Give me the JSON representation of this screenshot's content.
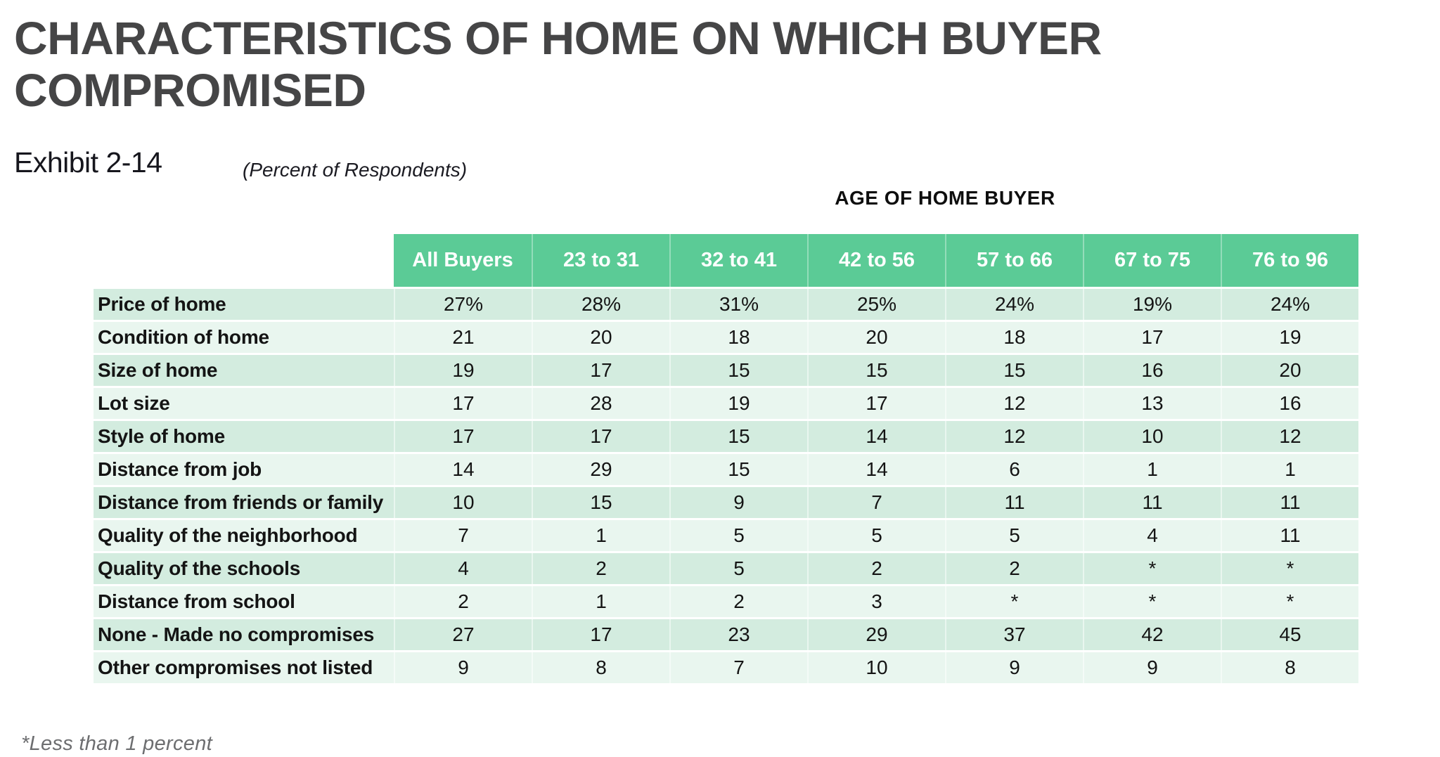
{
  "page": {
    "title": "CHARACTERISTICS OF HOME ON WHICH BUYER COMPROMISED",
    "exhibit_label": "Exhibit 2-14",
    "subtitle": "(Percent of Respondents)",
    "footnote": "*Less than 1 percent"
  },
  "colors": {
    "header_green": "#5BCB96",
    "row_stripe_dark": "#D3ECDF",
    "row_stripe_light": "#E9F6EF",
    "title_gray": "#454546",
    "header_text": "#FFFFFF",
    "body_text": "#141414"
  },
  "chart_data": {
    "type": "table",
    "title": "CHARACTERISTICS OF HOME ON WHICH BUYER COMPROMISED",
    "subtitle": "(Percent of Respondents)",
    "group_header": "AGE OF HOME BUYER",
    "group_header_spans_columns": [
      "23 to 31",
      "32 to 41",
      "42 to 56",
      "57 to 66",
      "67 to 75",
      "76 to 96"
    ],
    "columns": [
      "All Buyers",
      "23 to 31",
      "32 to 41",
      "42 to 56",
      "57 to 66",
      "67 to 75",
      "76 to 96"
    ],
    "rows": [
      {
        "label": "Price of home",
        "values": [
          "27%",
          "28%",
          "31%",
          "25%",
          "24%",
          "19%",
          "24%"
        ]
      },
      {
        "label": "Condition of home",
        "values": [
          "21",
          "20",
          "18",
          "20",
          "18",
          "17",
          "19"
        ]
      },
      {
        "label": "Size of home",
        "values": [
          "19",
          "17",
          "15",
          "15",
          "15",
          "16",
          "20"
        ]
      },
      {
        "label": "Lot size",
        "values": [
          "17",
          "28",
          "19",
          "17",
          "12",
          "13",
          "16"
        ]
      },
      {
        "label": "Style of home",
        "values": [
          "17",
          "17",
          "15",
          "14",
          "12",
          "10",
          "12"
        ]
      },
      {
        "label": "Distance from job",
        "values": [
          "14",
          "29",
          "15",
          "14",
          "6",
          "1",
          "1"
        ]
      },
      {
        "label": "Distance from friends or family",
        "values": [
          "10",
          "15",
          "9",
          "7",
          "11",
          "11",
          "11"
        ]
      },
      {
        "label": "Quality of the neighborhood",
        "values": [
          "7",
          "1",
          "5",
          "5",
          "5",
          "4",
          "11"
        ]
      },
      {
        "label": "Quality of the schools",
        "values": [
          "4",
          "2",
          "5",
          "2",
          "2",
          "*",
          "*"
        ]
      },
      {
        "label": "Distance from school",
        "values": [
          "2",
          "1",
          "2",
          "3",
          "*",
          "*",
          "*"
        ]
      },
      {
        "label": "None - Made no compromises",
        "values": [
          "27",
          "17",
          "23",
          "29",
          "37",
          "42",
          "45"
        ]
      },
      {
        "label": "Other compromises not listed",
        "values": [
          "9",
          "8",
          "7",
          "10",
          "9",
          "9",
          "8"
        ]
      }
    ],
    "footnote": "*Less than 1 percent"
  }
}
